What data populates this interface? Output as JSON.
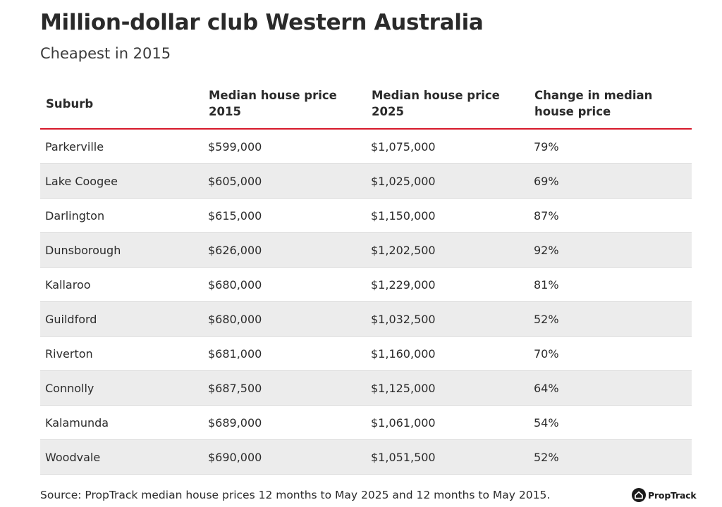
{
  "title": "Million-dollar club Western Australia",
  "subtitle": "Cheapest in 2015",
  "source": "Source: PropTrack median house prices 12 months to May 2025 and 12 months to May 2015.",
  "logo": {
    "icon": "house-logo-icon",
    "text": "PropTrack"
  },
  "colors": {
    "accent_rule": "#d7182a",
    "stripe": "#ececec"
  },
  "chart_data": {
    "type": "table",
    "columns": [
      "Suburb",
      "Median house price 2015",
      "Median house price 2025",
      "Change in median house price"
    ],
    "rows": [
      [
        "Parkerville",
        "$599,000",
        "$1,075,000",
        "79%"
      ],
      [
        "Lake Coogee",
        "$605,000",
        "$1,025,000",
        "69%"
      ],
      [
        "Darlington",
        "$615,000",
        "$1,150,000",
        "87%"
      ],
      [
        "Dunsborough",
        "$626,000",
        "$1,202,500",
        "92%"
      ],
      [
        "Kallaroo",
        "$680,000",
        "$1,229,000",
        "81%"
      ],
      [
        "Guildford",
        "$680,000",
        "$1,032,500",
        "52%"
      ],
      [
        "Riverton",
        "$681,000",
        "$1,160,000",
        "70%"
      ],
      [
        "Connolly",
        "$687,500",
        "$1,125,000",
        "64%"
      ],
      [
        "Kalamunda",
        "$689,000",
        "$1,061,000",
        "54%"
      ],
      [
        "Woodvale",
        "$690,000",
        "$1,051,500",
        "52%"
      ]
    ]
  }
}
